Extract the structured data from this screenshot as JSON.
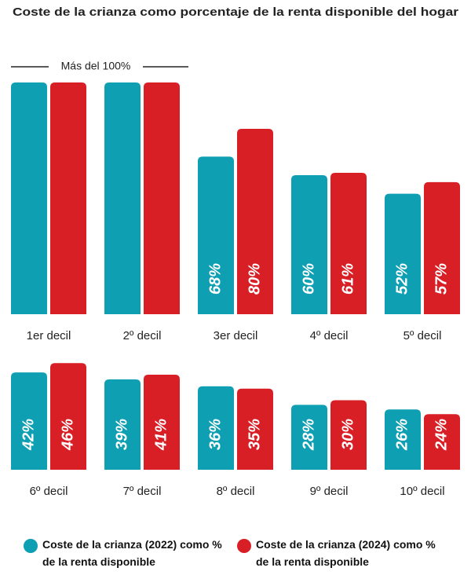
{
  "chart_data": {
    "type": "bar",
    "title": "Coste de la crianza como porcentaje de la renta disponible del hogar",
    "annotation": "Más del 100%",
    "categories": [
      "1er decil",
      "2º decil",
      "3er decil",
      "4º decil",
      "5º decil",
      "6º decil",
      "7º decil",
      "8º decil",
      "9º decil",
      "10º decil"
    ],
    "series": [
      {
        "name": "Coste de la crianza (2022) como % de la renta disponible",
        "color": "#0e9fb3",
        "values": [
          100,
          100,
          68,
          60,
          52,
          42,
          39,
          36,
          28,
          26
        ],
        "value_labels": [
          null,
          null,
          "68%",
          "60%",
          "52%",
          "42%",
          "39%",
          "36%",
          "28%",
          "26%"
        ]
      },
      {
        "name": "Coste de la crianza (2024) como % de la renta disponible",
        "color": "#d91f26",
        "values": [
          100,
          100,
          80,
          61,
          57,
          46,
          41,
          35,
          30,
          24
        ],
        "value_labels": [
          null,
          null,
          "80%",
          "61%",
          "57%",
          "46%",
          "41%",
          "35%",
          "30%",
          "24%"
        ]
      }
    ],
    "ylim": [
      0,
      100
    ]
  }
}
